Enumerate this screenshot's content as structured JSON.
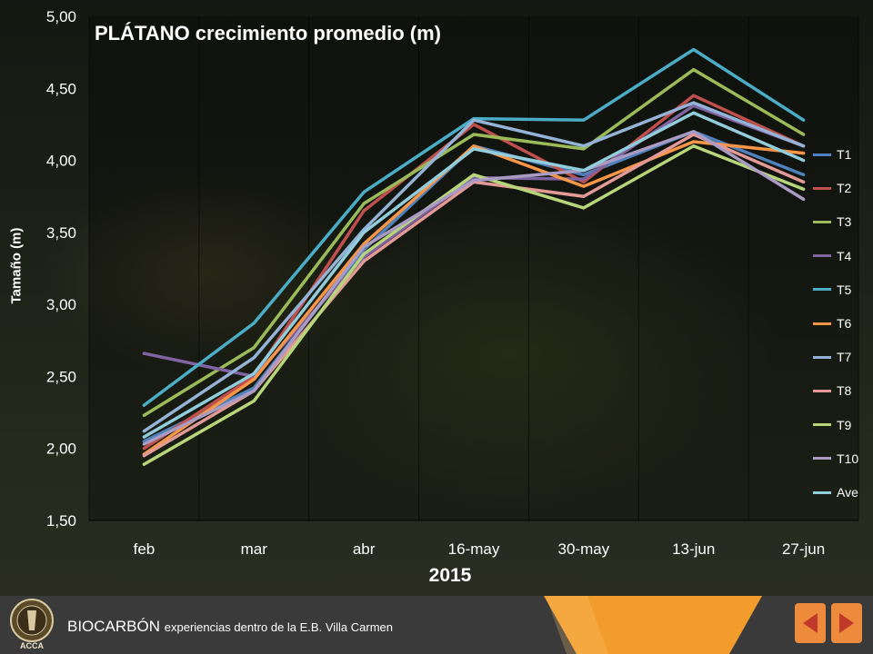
{
  "chart_data": {
    "type": "line",
    "title": "PLÁTANO crecimiento promedio (m)",
    "xlabel": "2015",
    "ylabel": "Tamaño (m)",
    "categories": [
      "feb",
      "mar",
      "abr",
      "16-may",
      "30-may",
      "13-jun",
      "27-jun"
    ],
    "ylim": [
      1.5,
      5.0
    ],
    "yticks": [
      "1,50",
      "2,00",
      "2,50",
      "3,00",
      "3,50",
      "4,00",
      "4,50",
      "5,00"
    ],
    "grid": "vertical",
    "legend_position": "right",
    "series": [
      {
        "name": "T1",
        "color": "#4f81bd",
        "values": [
          2.05,
          2.42,
          3.38,
          4.1,
          3.9,
          4.2,
          3.9
        ]
      },
      {
        "name": "T2",
        "color": "#c0504d",
        "values": [
          2.0,
          2.5,
          3.65,
          4.25,
          3.85,
          4.45,
          4.1
        ]
      },
      {
        "name": "T3",
        "color": "#9bbb59",
        "values": [
          2.23,
          2.7,
          3.7,
          4.18,
          4.08,
          4.63,
          4.18
        ]
      },
      {
        "name": "T4",
        "color": "#8064a2",
        "values": [
          2.66,
          2.5,
          3.33,
          3.88,
          3.87,
          4.38,
          4.1
        ]
      },
      {
        "name": "T5",
        "color": "#4bacc6",
        "values": [
          2.3,
          2.87,
          3.78,
          4.29,
          4.28,
          4.77,
          4.28
        ]
      },
      {
        "name": "T6",
        "color": "#f79646",
        "values": [
          1.96,
          2.48,
          3.42,
          4.1,
          3.82,
          4.13,
          4.05
        ]
      },
      {
        "name": "T7",
        "color": "#94b3d6",
        "values": [
          2.12,
          2.63,
          3.52,
          4.28,
          4.1,
          4.4,
          4.1
        ]
      },
      {
        "name": "T8",
        "color": "#e39a97",
        "values": [
          1.95,
          2.4,
          3.3,
          3.85,
          3.75,
          4.18,
          3.85
        ]
      },
      {
        "name": "T9",
        "color": "#b7d67a",
        "values": [
          1.89,
          2.33,
          3.35,
          3.9,
          3.67,
          4.1,
          3.8
        ]
      },
      {
        "name": "T10",
        "color": "#a99bc2",
        "values": [
          2.03,
          2.4,
          3.4,
          3.86,
          3.93,
          4.2,
          3.73
        ]
      },
      {
        "name": "Ave",
        "color": "#92cddc",
        "values": [
          2.08,
          2.52,
          3.5,
          4.08,
          3.93,
          4.33,
          4.0
        ]
      }
    ]
  },
  "footer": {
    "title": "BIOCARBÓN",
    "subtitle": "experiencias dentro de la E.B. Villa Carmen",
    "logo_text": "ACCA",
    "accent_color": "#f29c2e"
  }
}
